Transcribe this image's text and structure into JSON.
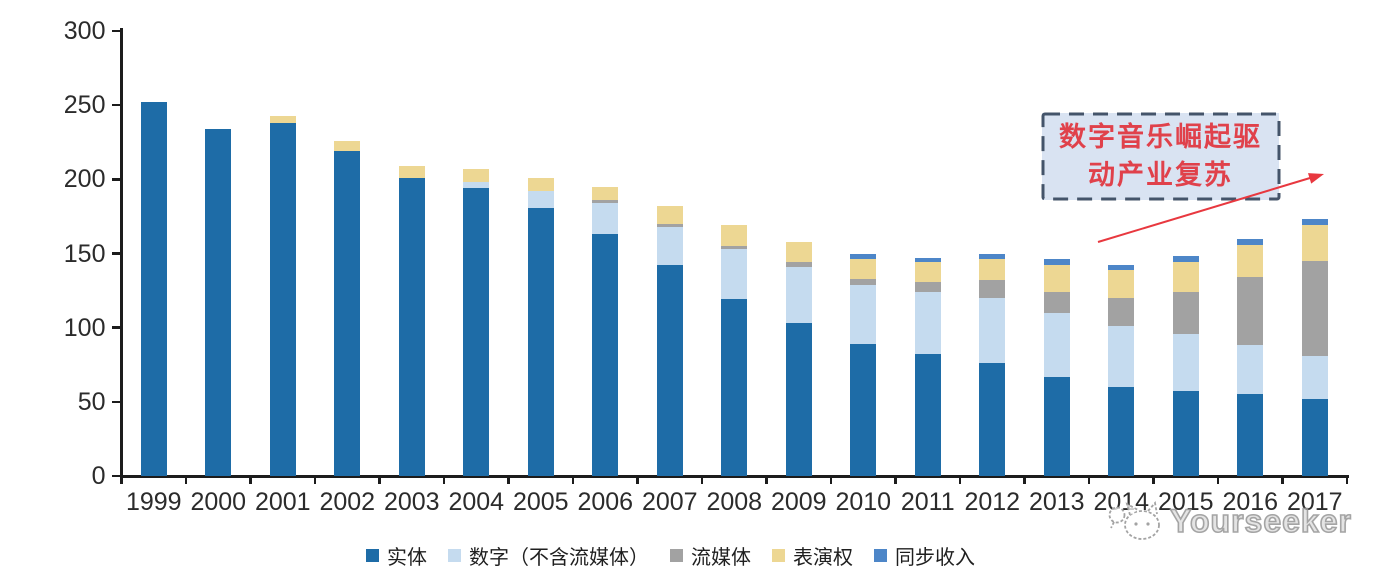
{
  "chart_data": {
    "type": "bar",
    "stacked": true,
    "categories": [
      "1999",
      "2000",
      "2001",
      "2002",
      "2003",
      "2004",
      "2005",
      "2006",
      "2007",
      "2008",
      "2009",
      "2010",
      "2011",
      "2012",
      "2013",
      "2014",
      "2015",
      "2016",
      "2017"
    ],
    "series": [
      {
        "name": "实体",
        "color": "#1E6CA7",
        "values": [
          252,
          234,
          238,
          219,
          201,
          194,
          181,
          163,
          142,
          119,
          103,
          89,
          82,
          76,
          67,
          60,
          57,
          55,
          52
        ]
      },
      {
        "name": "数字（不含流媒体）",
        "color": "#C5DBEF",
        "values": [
          0,
          0,
          0,
          0,
          0,
          4,
          11,
          21,
          26,
          34,
          38,
          40,
          42,
          44,
          43,
          41,
          39,
          33,
          29
        ]
      },
      {
        "name": "流媒体",
        "color": "#A2A2A2",
        "values": [
          0,
          0,
          0,
          0,
          0,
          0,
          0,
          2,
          2,
          2,
          3,
          4,
          7,
          12,
          14,
          19,
          28,
          46,
          64
        ]
      },
      {
        "name": "表演权",
        "color": "#EDD793",
        "values": [
          0,
          0,
          5,
          7,
          8,
          9,
          9,
          9,
          12,
          14,
          14,
          13,
          13,
          14,
          18,
          19,
          20,
          22,
          24
        ]
      },
      {
        "name": "同步收入",
        "color": "#4D86C8",
        "values": [
          0,
          0,
          0,
          0,
          0,
          0,
          0,
          0,
          0,
          0,
          0,
          4,
          3,
          4,
          4,
          3,
          4,
          4,
          4
        ]
      }
    ],
    "ylim": [
      0,
      300
    ],
    "yticks": [
      0,
      50,
      100,
      150,
      200,
      250,
      300
    ],
    "grid": false,
    "legend_position": "bottom"
  },
  "annotation": {
    "lines": [
      "数字音乐崛起驱",
      "动产业复苏"
    ],
    "text_color": "#E0414B",
    "box_fill": "#D9E3F2",
    "box_border": "#44546A",
    "arrow_color": "#E8383F"
  },
  "watermark": {
    "text": "Yourseeker"
  }
}
